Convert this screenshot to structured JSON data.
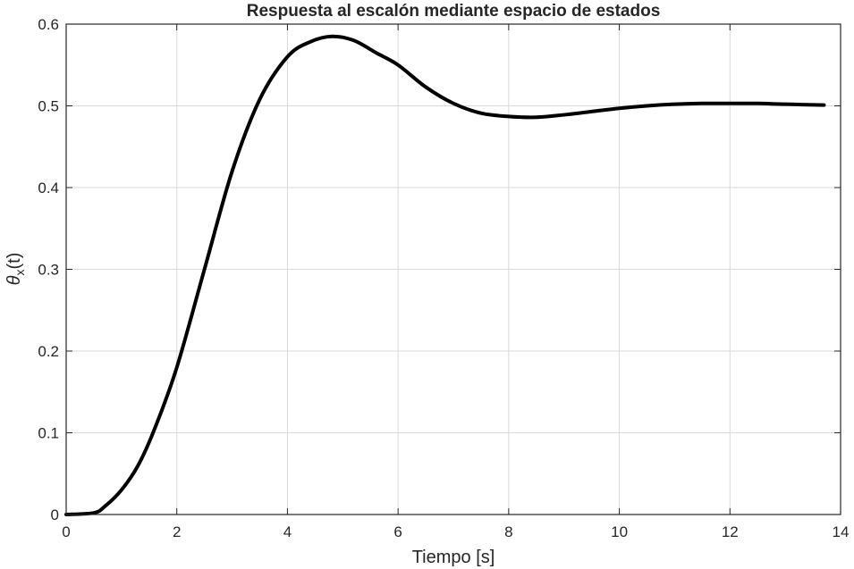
{
  "chart_data": {
    "type": "line",
    "title": "Respuesta al escalón mediante espacio de estados",
    "xlabel": "Tiempo [s]",
    "ylabel": {
      "symbol": "θ",
      "subscript": "x",
      "suffix": "(t)"
    },
    "xlim": [
      0,
      14
    ],
    "ylim": [
      0,
      0.6
    ],
    "xticks": [
      0,
      2,
      4,
      6,
      8,
      10,
      12,
      14
    ],
    "xtick_labels": [
      "0",
      "2",
      "4",
      "6",
      "8",
      "10",
      "12",
      "14"
    ],
    "yticks": [
      0,
      0.1,
      0.2,
      0.3,
      0.4,
      0.5,
      0.6
    ],
    "ytick_labels": [
      "0",
      "0.1",
      "0.2",
      "0.3",
      "0.4",
      "0.5",
      "0.6"
    ],
    "grid": true,
    "series": [
      {
        "name": "theta_x",
        "color": "#000000",
        "x": [
          0,
          0.5,
          0.7,
          1.0,
          1.3,
          1.6,
          2.0,
          2.5,
          3.0,
          3.5,
          4.0,
          4.4,
          4.8,
          5.2,
          5.6,
          6.0,
          6.5,
          7.0,
          7.5,
          8.0,
          8.5,
          9.0,
          9.5,
          10.0,
          10.5,
          11.0,
          11.5,
          12.0,
          12.5,
          13.0,
          13.7
        ],
        "y": [
          0,
          0.002,
          0.01,
          0.03,
          0.06,
          0.105,
          0.18,
          0.3,
          0.42,
          0.508,
          0.56,
          0.578,
          0.585,
          0.58,
          0.565,
          0.55,
          0.523,
          0.503,
          0.491,
          0.487,
          0.486,
          0.489,
          0.493,
          0.497,
          0.5,
          0.502,
          0.503,
          0.503,
          0.503,
          0.502,
          0.501
        ]
      }
    ]
  }
}
